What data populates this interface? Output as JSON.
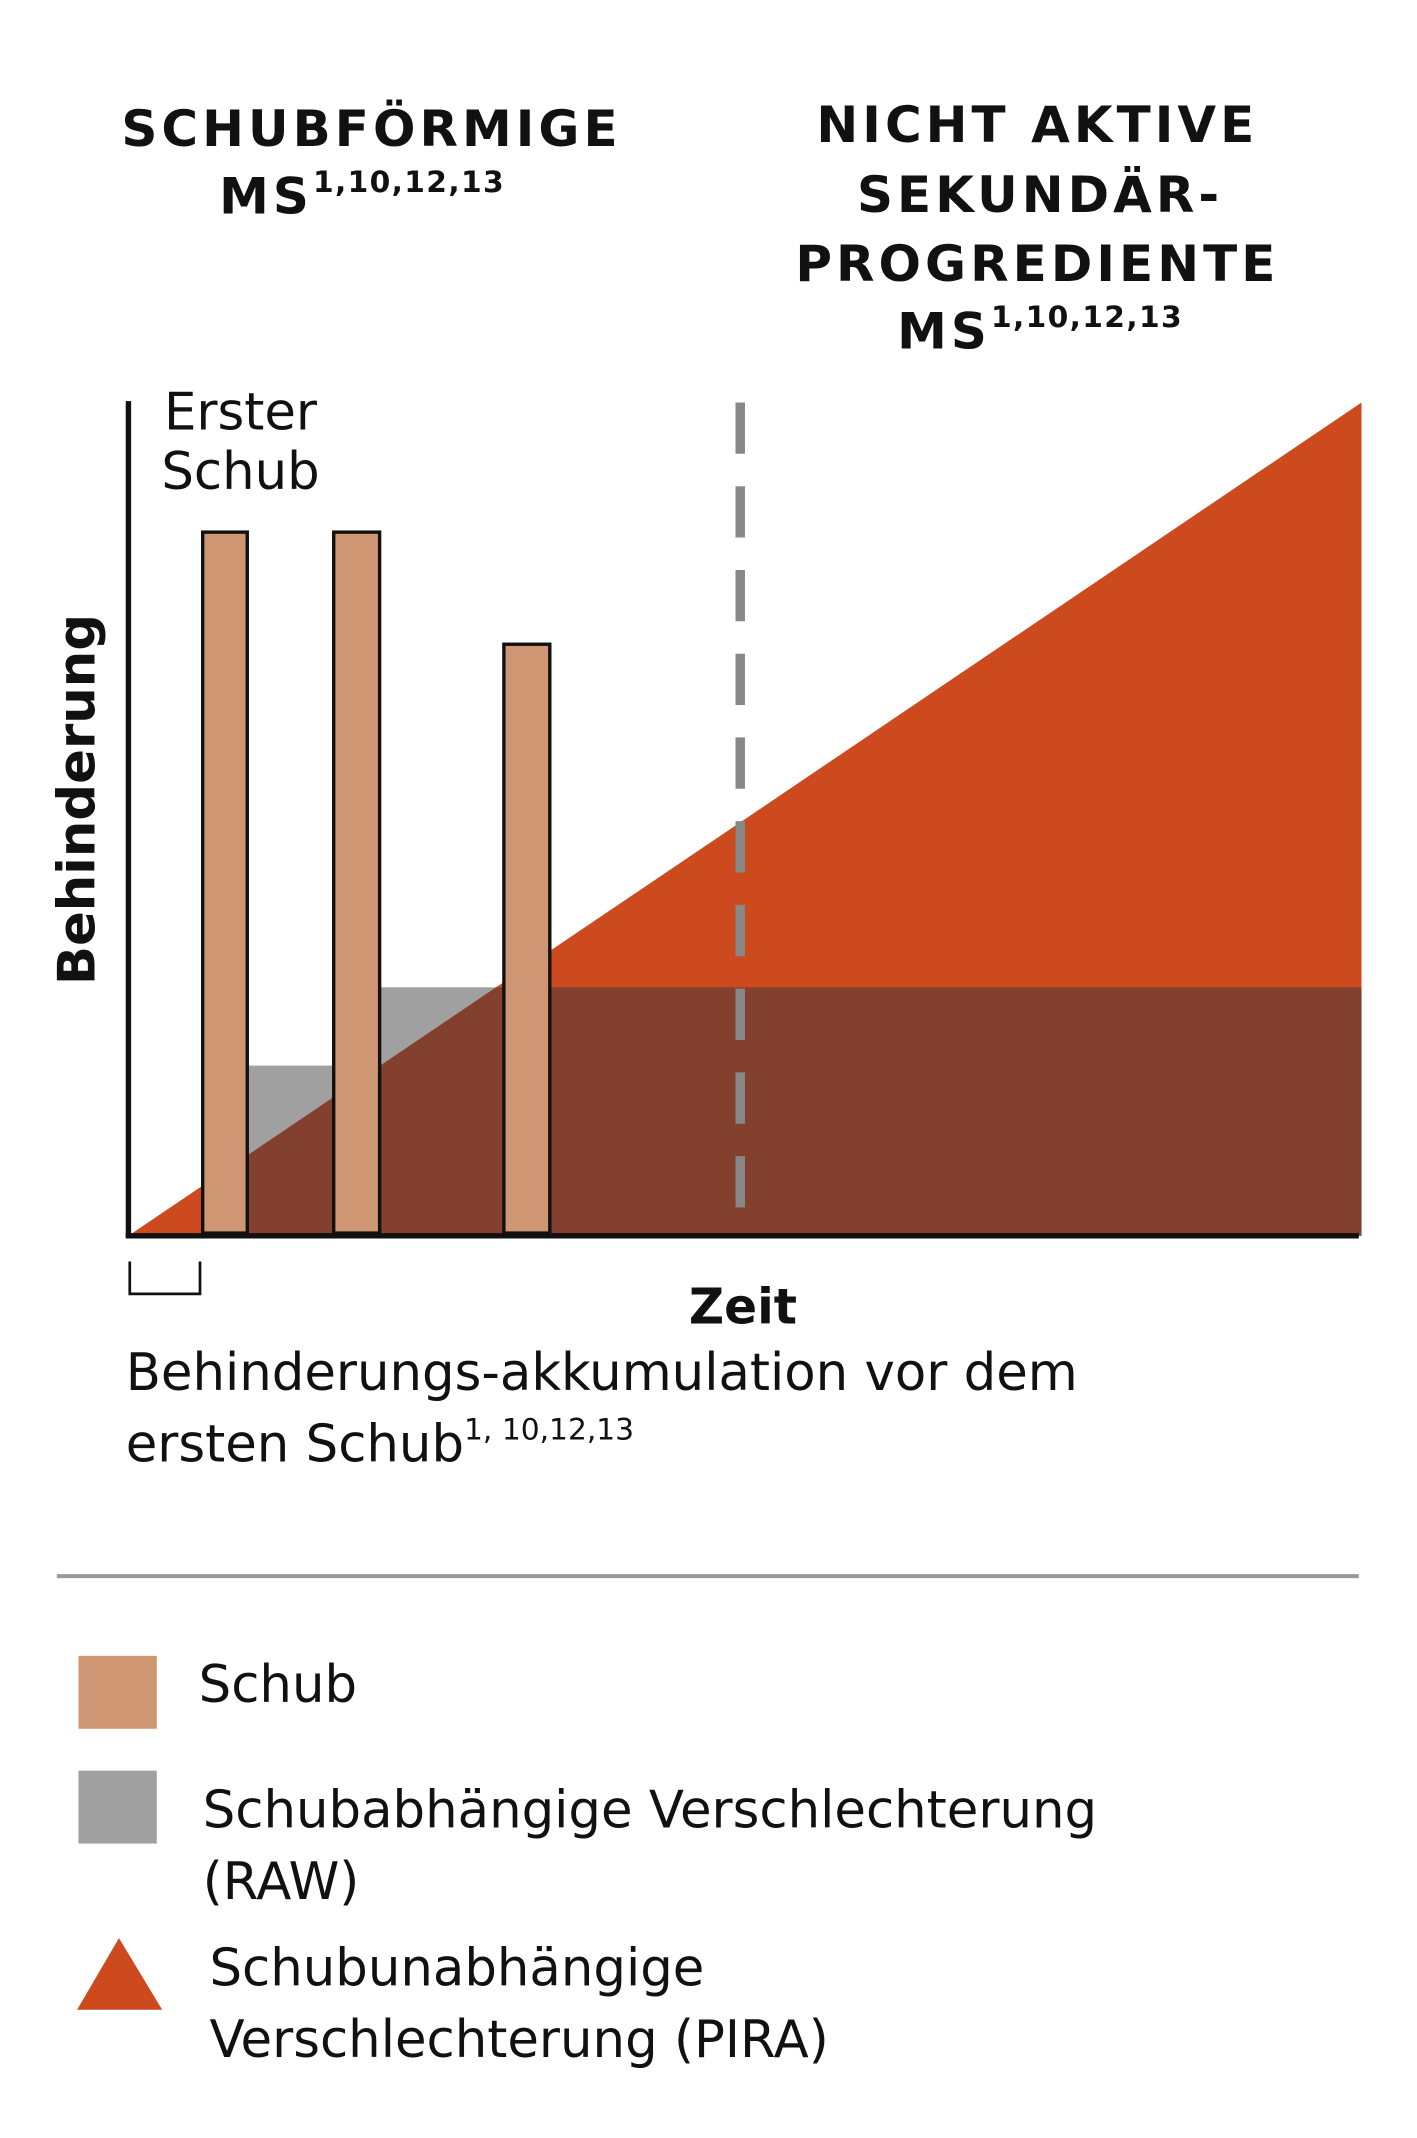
{
  "titles": {
    "left": {
      "lines": [
        "SCHUBFÖRMIGE",
        "MS"
      ],
      "sup": "1,10,12,13"
    },
    "right": {
      "lines": [
        "NICHT AKTIVE",
        "SEKUNDÄR-",
        "PROGREDIENTE",
        "MS"
      ],
      "sup": "1,10,12,13"
    }
  },
  "diagram": {
    "y_axis_label": "Behinderung",
    "x_axis_label": "Zeit",
    "annotation": [
      "Erster",
      "Schub"
    ],
    "caption": {
      "lines": [
        "Behinderungs-akkumulation vor dem",
        "ersten Schub"
      ],
      "sup": "1, 10,12,13"
    }
  },
  "legend": [
    {
      "label": [
        "Schub"
      ]
    },
    {
      "label": [
        "Schubabhängige Verschlechterung",
        "(RAW)"
      ]
    },
    {
      "label": [
        "Schubunabhängige",
        "Verschlechterung (PIRA)"
      ]
    }
  ]
}
